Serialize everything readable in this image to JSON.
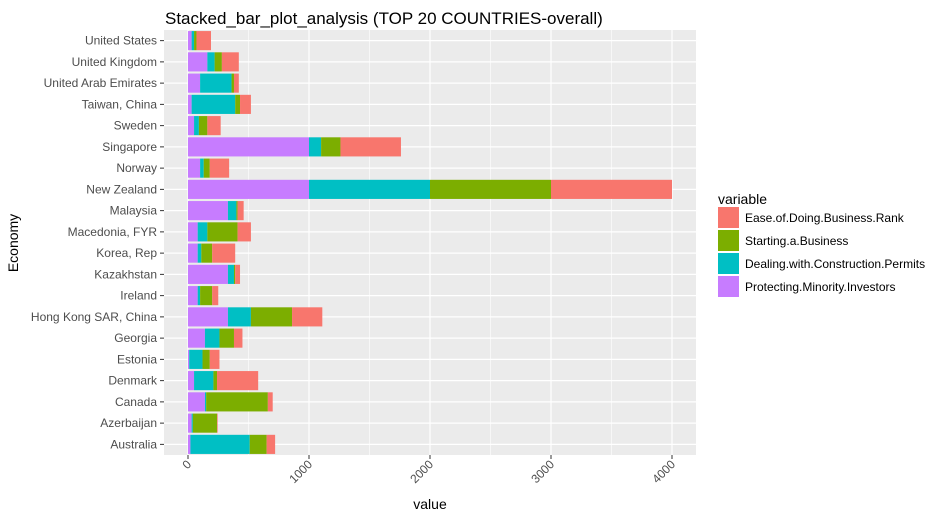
{
  "chart_data": {
    "type": "bar",
    "orientation": "horizontal",
    "stacked": true,
    "title": "Stacked_bar_plot_analysis (TOP 20 COUNTRIES-overall)",
    "xlabel": "value",
    "ylabel": "Economy",
    "xlim": [
      0,
      4000
    ],
    "xticks": [
      "0",
      "1000",
      "2000",
      "3000",
      "4000"
    ],
    "grid": true,
    "legend_title": "variable",
    "legend_position": "right",
    "categories": [
      "Australia",
      "Azerbaijan",
      "Canada",
      "Denmark",
      "Estonia",
      "Georgia",
      "Hong Kong SAR, China",
      "Ireland",
      "Kazakhstan",
      "Korea, Rep",
      "Macedonia, FYR",
      "Malaysia",
      "New Zealand",
      "Norway",
      "Singapore",
      "Sweden",
      "Taiwan, China",
      "United Arab Emirates",
      "United Kingdom",
      "United States"
    ],
    "series": [
      {
        "name": "Protecting.Minority.Investors",
        "color": "#C77CFF",
        "values": [
          20,
          30,
          140,
          50,
          10,
          140,
          330,
          80,
          330,
          80,
          80,
          330,
          1000,
          100,
          1000,
          50,
          30,
          100,
          160,
          30
        ]
      },
      {
        "name": "Dealing.with.Construction.Permits",
        "color": "#00BFC4",
        "values": [
          490,
          10,
          10,
          160,
          110,
          120,
          190,
          20,
          50,
          30,
          80,
          70,
          1000,
          30,
          100,
          40,
          360,
          260,
          60,
          20
        ]
      },
      {
        "name": "Starting.a.Business",
        "color": "#7CAE00",
        "values": [
          140,
          200,
          510,
          30,
          60,
          120,
          340,
          100,
          10,
          90,
          250,
          10,
          1000,
          50,
          160,
          70,
          40,
          20,
          60,
          20
        ]
      },
      {
        "name": "Ease.of.Doing.Business.Rank",
        "color": "#F8766D",
        "values": [
          70,
          5,
          40,
          340,
          80,
          70,
          250,
          50,
          40,
          190,
          110,
          50,
          1000,
          160,
          500,
          110,
          90,
          40,
          140,
          120
        ]
      }
    ]
  }
}
